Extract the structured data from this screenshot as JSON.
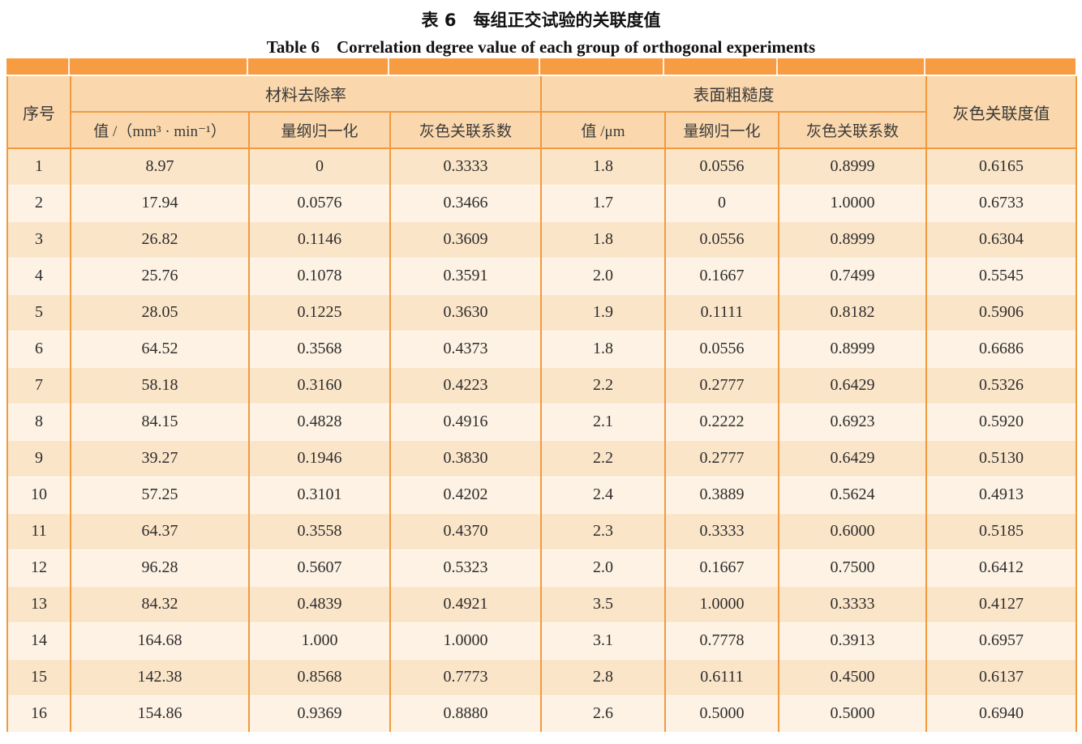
{
  "titles": {
    "zh": "表 6 每组正交试验的关联度值",
    "en": "Table 6  Correlation degree value of each group of orthogonal experiments"
  },
  "table": {
    "col_seq": "序号",
    "group_mrr": "材料去除率",
    "group_ra": "表面粗糙度",
    "col_grey_degree": "灰色关联度值",
    "subs": [
      "值 /（mm³ · min⁻¹）",
      "量纲归一化",
      "灰色关联系数",
      "值 /μm",
      "量纲归一化",
      "灰色关联系数"
    ],
    "rows": [
      [
        "1",
        "8.97",
        "0",
        "0.3333",
        "1.8",
        "0.0556",
        "0.8999",
        "0.6165"
      ],
      [
        "2",
        "17.94",
        "0.0576",
        "0.3466",
        "1.7",
        "0",
        "1.0000",
        "0.6733"
      ],
      [
        "3",
        "26.82",
        "0.1146",
        "0.3609",
        "1.8",
        "0.0556",
        "0.8999",
        "0.6304"
      ],
      [
        "4",
        "25.76",
        "0.1078",
        "0.3591",
        "2.0",
        "0.1667",
        "0.7499",
        "0.5545"
      ],
      [
        "5",
        "28.05",
        "0.1225",
        "0.3630",
        "1.9",
        "0.1111",
        "0.8182",
        "0.5906"
      ],
      [
        "6",
        "64.52",
        "0.3568",
        "0.4373",
        "1.8",
        "0.0556",
        "0.8999",
        "0.6686"
      ],
      [
        "7",
        "58.18",
        "0.3160",
        "0.4223",
        "2.2",
        "0.2777",
        "0.6429",
        "0.5326"
      ],
      [
        "8",
        "84.15",
        "0.4828",
        "0.4916",
        "2.1",
        "0.2222",
        "0.6923",
        "0.5920"
      ],
      [
        "9",
        "39.27",
        "0.1946",
        "0.3830",
        "2.2",
        "0.2777",
        "0.6429",
        "0.5130"
      ],
      [
        "10",
        "57.25",
        "0.3101",
        "0.4202",
        "2.4",
        "0.3889",
        "0.5624",
        "0.4913"
      ],
      [
        "11",
        "64.37",
        "0.3558",
        "0.4370",
        "2.3",
        "0.3333",
        "0.6000",
        "0.5185"
      ],
      [
        "12",
        "96.28",
        "0.5607",
        "0.5323",
        "2.0",
        "0.1667",
        "0.7500",
        "0.6412"
      ],
      [
        "13",
        "84.32",
        "0.4839",
        "0.4921",
        "3.5",
        "1.0000",
        "0.3333",
        "0.4127"
      ],
      [
        "14",
        "164.68",
        "1.000",
        "1.0000",
        "3.1",
        "0.7778",
        "0.3913",
        "0.6957"
      ],
      [
        "15",
        "142.38",
        "0.8568",
        "0.7773",
        "2.8",
        "0.6111",
        "0.4500",
        "0.6137"
      ],
      [
        "16",
        "154.86",
        "0.9369",
        "0.8880",
        "2.6",
        "0.5000",
        "0.5000",
        "0.6940"
      ]
    ]
  },
  "colors": {
    "bar": "#F79C42",
    "border": "#F19A3E",
    "header_bg": "#FAD7AC",
    "row_odd": "#FBE5C9",
    "row_even": "#FDF2E3",
    "text": "#2D2D2D"
  }
}
